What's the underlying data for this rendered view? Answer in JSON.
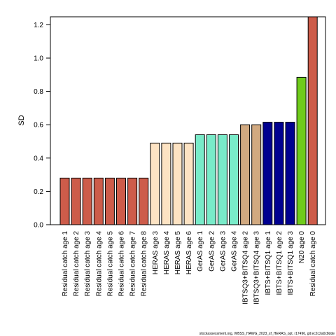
{
  "chart_data": {
    "type": "bar",
    "title": "",
    "xlabel": "",
    "ylabel": "SD",
    "ylim": [
      0,
      1.25
    ],
    "yticks": [
      "0.0",
      "0.2",
      "0.4",
      "0.6",
      "0.8",
      "1.0",
      "1.2"
    ],
    "grid": false,
    "categories": [
      "Residual catch age 1",
      "Residual catch age 2",
      "Residual catch age 3",
      "Residual catch age 4",
      "Residual catch age 5",
      "Residual catch age 6",
      "Residual catch age 7",
      "Residual catch age 8",
      "HERAS age 3",
      "HERAS age 4",
      "HERAS age 5",
      "HERAS age 6",
      "GerAS age 1",
      "GerAS age 2",
      "GerAS age 3",
      "GerAS age 4",
      "IBTSQ3+BITSQ4 age 2",
      "IBTSQ3+BITSQ4 age 3",
      "IBTS+BITSQ1 age 1",
      "IBTS+BITSQ1 age 2",
      "IBTS+BITSQ1 age 3",
      "N20 age 0",
      "Residual catch age 0"
    ],
    "values": [
      0.28,
      0.28,
      0.28,
      0.28,
      0.28,
      0.28,
      0.28,
      0.28,
      0.49,
      0.49,
      0.49,
      0.49,
      0.54,
      0.54,
      0.54,
      0.54,
      0.6,
      0.6,
      0.615,
      0.615,
      0.615,
      0.885,
      1.26
    ],
    "colors": [
      "#cd5c4a",
      "#cd5c4a",
      "#cd5c4a",
      "#cd5c4a",
      "#cd5c4a",
      "#cd5c4a",
      "#cd5c4a",
      "#cd5c4a",
      "#fde3c3",
      "#fde3c3",
      "#fde3c3",
      "#fde3c3",
      "#79ebc9",
      "#79ebc9",
      "#79ebc9",
      "#79ebc9",
      "#d1a980",
      "#d1a980",
      "#000090",
      "#000090",
      "#000090",
      "#6fcc1b",
      "#cd5c4a"
    ]
  },
  "footer": "stockassessment.org, WBSS_HAWG_2023_sf_HERAS_opt, r17496, git:ec2c2a0c8dde"
}
